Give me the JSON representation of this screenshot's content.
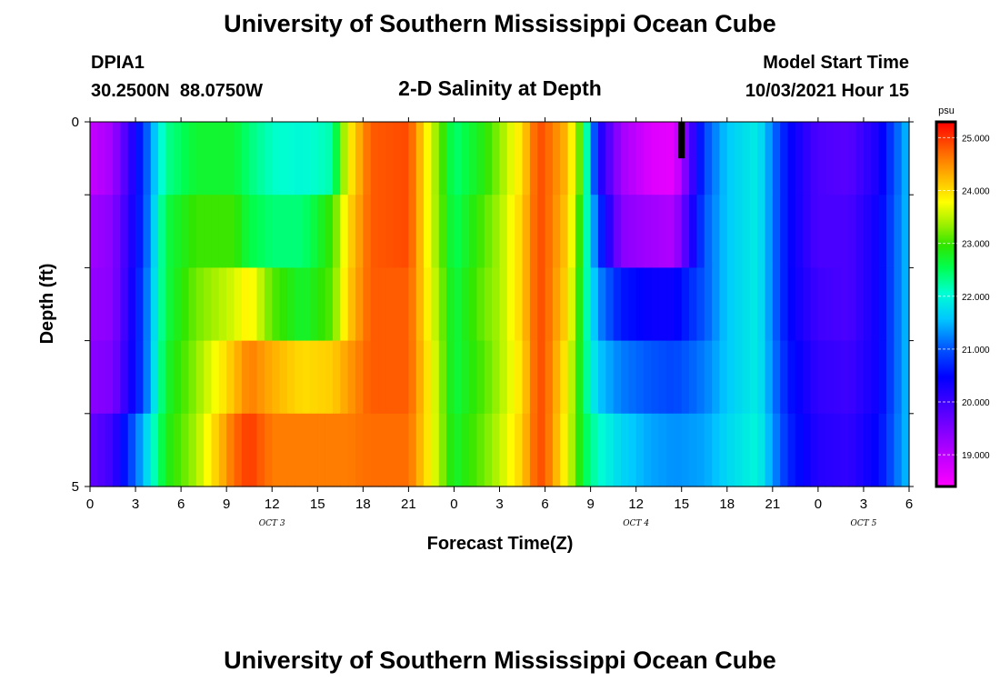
{
  "page": {
    "title_top": "University of Southern Mississippi Ocean Cube",
    "title_bottom": "University of Southern Mississippi Ocean Cube",
    "station_id": "DPIA1",
    "station_coords": "30.2500N  88.0750W",
    "plot_title": "2-D Salinity at Depth",
    "model_start_label": "Model Start Time",
    "model_start_value": "10/03/2021 Hour 15"
  },
  "chart_data": {
    "type": "heatmap",
    "title": "2-D Salinity at Depth",
    "xlabel": "Forecast Time(Z)",
    "ylabel": "Depth (ft)",
    "units": "psu",
    "xlim": [
      0,
      54
    ],
    "ylim": [
      0,
      5
    ],
    "x_ticks": [
      {
        "value": 0,
        "label": "0"
      },
      {
        "value": 3,
        "label": "3"
      },
      {
        "value": 6,
        "label": "6"
      },
      {
        "value": 9,
        "label": "9"
      },
      {
        "value": 12,
        "label": "12"
      },
      {
        "value": 15,
        "label": "15"
      },
      {
        "value": 18,
        "label": "18"
      },
      {
        "value": 21,
        "label": "21"
      },
      {
        "value": 24,
        "label": "0"
      },
      {
        "value": 27,
        "label": "3"
      },
      {
        "value": 30,
        "label": "6"
      },
      {
        "value": 33,
        "label": "9"
      },
      {
        "value": 36,
        "label": "12"
      },
      {
        "value": 39,
        "label": "15"
      },
      {
        "value": 42,
        "label": "18"
      },
      {
        "value": 45,
        "label": "21"
      },
      {
        "value": 48,
        "label": "0"
      },
      {
        "value": 51,
        "label": "3"
      },
      {
        "value": 54,
        "label": "6"
      }
    ],
    "y_ticks": [
      {
        "value": 0,
        "label": "0"
      },
      {
        "value": 1,
        "label": ""
      },
      {
        "value": 2,
        "label": ""
      },
      {
        "value": 3,
        "label": ""
      },
      {
        "value": 4,
        "label": ""
      },
      {
        "value": 5,
        "label": "5"
      }
    ],
    "date_labels": [
      {
        "x": 12,
        "label": "OCT 3"
      },
      {
        "x": 36,
        "label": "OCT 4"
      },
      {
        "x": 51,
        "label": "OCT 5"
      }
    ],
    "current_time_marker": {
      "x": 39,
      "depth_from": 0,
      "depth_to": 0.5
    },
    "colorbar": {
      "min": 18.4,
      "max": 25.3,
      "ticks": [
        25.0,
        24.0,
        23.0,
        22.0,
        21.0,
        20.0,
        19.0
      ],
      "tick_labels": [
        "25.000",
        "24.000",
        "23.000",
        "22.000",
        "21.000",
        "20.000",
        "19.000"
      ]
    },
    "depth_layers": [
      0.5,
      1.5,
      2.5,
      3.5,
      4.5
    ],
    "time_anchors": [
      0,
      1.5,
      3.5,
      5,
      7,
      9.5,
      10.5,
      12,
      14,
      16,
      17,
      18.5,
      21,
      22.5,
      24,
      26,
      27,
      28.5,
      29.5,
      30,
      31.5,
      32.5,
      33.5,
      35,
      37,
      38.5,
      40.5,
      42,
      44,
      46,
      48,
      50,
      52,
      54
    ],
    "salinity_psu": [
      [
        18.9,
        19.2,
        20.8,
        22.3,
        22.7,
        22.7,
        22.4,
        22.1,
        22.0,
        22.2,
        23.8,
        24.8,
        24.9,
        23.6,
        22.4,
        22.9,
        23.3,
        24.0,
        24.9,
        24.8,
        24.2,
        22.8,
        20.4,
        19.2,
        18.7,
        18.6,
        20.9,
        21.6,
        21.9,
        20.5,
        19.9,
        19.8,
        20.3,
        21.6
      ],
      [
        19.2,
        19.4,
        20.8,
        22.6,
        23.0,
        23.0,
        22.6,
        22.4,
        22.4,
        23.0,
        24.0,
        24.8,
        24.9,
        23.6,
        22.5,
        23.1,
        23.4,
        24.1,
        24.9,
        24.8,
        24.1,
        22.6,
        20.9,
        19.4,
        19.2,
        19.1,
        21.0,
        21.6,
        21.9,
        20.5,
        19.9,
        19.9,
        20.4,
        21.6
      ],
      [
        19.3,
        19.4,
        20.9,
        22.6,
        23.2,
        23.6,
        23.9,
        23.1,
        22.7,
        23.1,
        24.1,
        24.8,
        24.8,
        23.7,
        22.6,
        23.2,
        23.4,
        24.1,
        24.9,
        24.8,
        24.0,
        22.5,
        21.3,
        20.6,
        20.4,
        20.4,
        21.0,
        21.6,
        21.9,
        20.5,
        20.0,
        19.9,
        20.4,
        21.6
      ],
      [
        19.4,
        19.5,
        20.9,
        22.7,
        23.3,
        24.2,
        24.6,
        24.3,
        24.0,
        24.1,
        24.4,
        24.8,
        24.8,
        23.8,
        22.6,
        23.1,
        23.4,
        24.0,
        24.9,
        24.8,
        23.8,
        22.5,
        21.6,
        21.2,
        21.0,
        20.9,
        21.2,
        21.6,
        21.9,
        20.6,
        20.1,
        20.0,
        20.4,
        21.6
      ],
      [
        19.7,
        20.0,
        21.5,
        22.8,
        23.4,
        24.7,
        25.0,
        24.6,
        24.6,
        24.6,
        24.6,
        24.7,
        24.7,
        23.8,
        22.7,
        23.2,
        23.5,
        24.1,
        24.9,
        24.8,
        23.7,
        22.6,
        22.1,
        21.7,
        21.4,
        21.3,
        21.4,
        21.7,
        22.0,
        20.7,
        20.2,
        20.1,
        20.5,
        21.6
      ]
    ]
  }
}
